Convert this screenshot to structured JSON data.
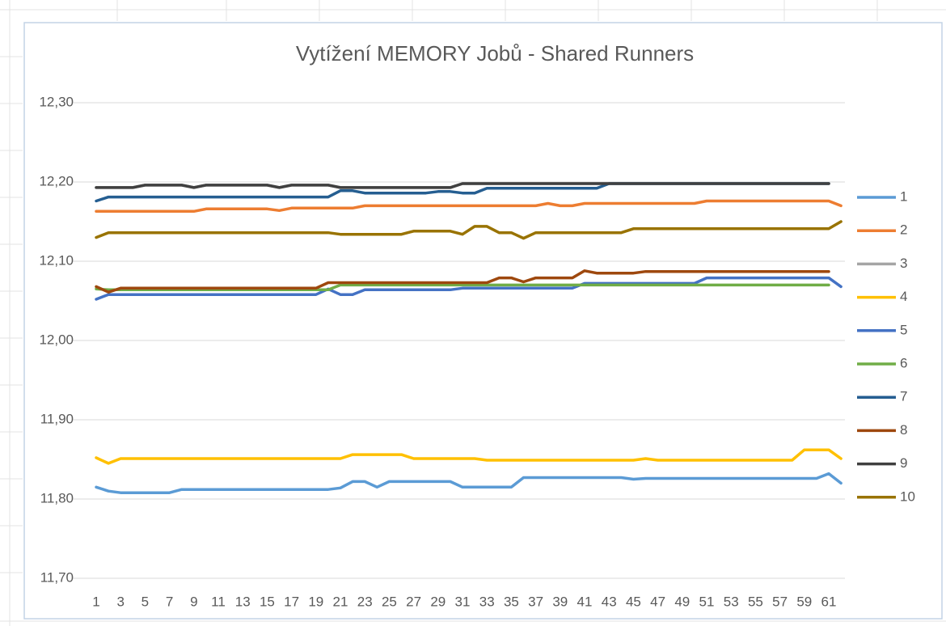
{
  "chart_data": {
    "type": "line",
    "title": "Vytížení MEMORY Jobů - Shared Runners",
    "categories": [
      "1",
      null,
      "3",
      null,
      "5",
      null,
      "7",
      null,
      "9",
      null,
      "11",
      null,
      "13",
      null,
      "15",
      null,
      "17",
      null,
      "19",
      null,
      "21",
      null,
      "23",
      null,
      "25",
      null,
      "27",
      null,
      "29",
      null,
      "31",
      null,
      "33",
      null,
      "35",
      null,
      "37",
      null,
      "39",
      null,
      "41",
      null,
      "43",
      null,
      "45",
      null,
      "47",
      null,
      "49",
      null,
      "51",
      null,
      "53",
      null,
      "55",
      null,
      "57",
      null,
      "59",
      null,
      "61",
      null
    ],
    "ylim": [
      11.7,
      12.3
    ],
    "yticks": [
      {
        "value": 11.7,
        "label": "11,70"
      },
      {
        "value": 11.8,
        "label": "11,80"
      },
      {
        "value": 11.9,
        "label": "11,90"
      },
      {
        "value": 12.0,
        "label": "12,00"
      },
      {
        "value": 12.1,
        "label": "12,10"
      },
      {
        "value": 12.2,
        "label": "12,20"
      },
      {
        "value": 12.3,
        "label": "12,30"
      }
    ],
    "grid": true,
    "legend": "right",
    "series": [
      {
        "name": "1",
        "color": "#5b9bd5",
        "values": [
          11.815,
          11.81,
          11.808,
          11.808,
          11.808,
          11.808,
          11.808,
          11.812,
          11.812,
          11.812,
          11.812,
          11.812,
          11.812,
          11.812,
          11.812,
          11.812,
          11.812,
          11.812,
          11.812,
          11.812,
          11.814,
          11.822,
          11.822,
          11.815,
          11.822,
          11.822,
          11.822,
          11.822,
          11.822,
          11.822,
          11.815,
          11.815,
          11.815,
          11.815,
          11.815,
          11.827,
          11.827,
          11.827,
          11.827,
          11.827,
          11.827,
          11.827,
          11.827,
          11.827,
          11.825,
          11.826,
          11.826,
          11.826,
          11.826,
          11.826,
          11.826,
          11.826,
          11.826,
          11.826,
          11.826,
          11.826,
          11.826,
          11.826,
          11.826,
          11.826,
          11.832,
          11.82
        ]
      },
      {
        "name": "2",
        "color": "#ed7d31",
        "values": [
          12.163,
          12.163,
          12.163,
          12.163,
          12.163,
          12.163,
          12.163,
          12.163,
          12.163,
          12.166,
          12.166,
          12.166,
          12.166,
          12.166,
          12.166,
          12.164,
          12.167,
          12.167,
          12.167,
          12.167,
          12.167,
          12.167,
          12.17,
          12.17,
          12.17,
          12.17,
          12.17,
          12.17,
          12.17,
          12.17,
          12.17,
          12.17,
          12.17,
          12.17,
          12.17,
          12.17,
          12.17,
          12.173,
          12.17,
          12.17,
          12.173,
          12.173,
          12.173,
          12.173,
          12.173,
          12.173,
          12.173,
          12.173,
          12.173,
          12.173,
          12.176,
          12.176,
          12.176,
          12.176,
          12.176,
          12.176,
          12.176,
          12.176,
          12.176,
          12.176,
          12.176,
          12.17
        ]
      },
      {
        "name": "3",
        "color": "#a5a5a5",
        "values": [
          12.193,
          12.193,
          12.193,
          12.193,
          12.196,
          12.196,
          12.196,
          12.196,
          12.193,
          12.196,
          12.196,
          12.196,
          12.196,
          12.196,
          12.196,
          12.193,
          12.196,
          12.196,
          12.196,
          12.196,
          12.193,
          12.193,
          12.193,
          12.193,
          12.193,
          12.193,
          12.193,
          12.193,
          12.193,
          12.193,
          12.198,
          12.198,
          12.198,
          12.198,
          12.198,
          12.198,
          12.198,
          12.198,
          12.198,
          12.198,
          12.198,
          12.198,
          12.198,
          12.198,
          12.198,
          12.198,
          12.198,
          12.198,
          12.198,
          12.198,
          12.198,
          12.198,
          12.198,
          12.198,
          12.198,
          12.198,
          12.198,
          12.198,
          12.198,
          12.198,
          12.198,
          null
        ]
      },
      {
        "name": "4",
        "color": "#ffc000",
        "values": [
          11.852,
          11.845,
          11.851,
          11.851,
          11.851,
          11.851,
          11.851,
          11.851,
          11.851,
          11.851,
          11.851,
          11.851,
          11.851,
          11.851,
          11.851,
          11.851,
          11.851,
          11.851,
          11.851,
          11.851,
          11.851,
          11.856,
          11.856,
          11.856,
          11.856,
          11.856,
          11.851,
          11.851,
          11.851,
          11.851,
          11.851,
          11.851,
          11.849,
          11.849,
          11.849,
          11.849,
          11.849,
          11.849,
          11.849,
          11.849,
          11.849,
          11.849,
          11.849,
          11.849,
          11.849,
          11.851,
          11.849,
          11.849,
          11.849,
          11.849,
          11.849,
          11.849,
          11.849,
          11.849,
          11.849,
          11.849,
          11.849,
          11.849,
          11.862,
          11.862,
          11.862,
          11.851
        ]
      },
      {
        "name": "5",
        "color": "#4472c4",
        "values": [
          12.052,
          12.058,
          12.058,
          12.058,
          12.058,
          12.058,
          12.058,
          12.058,
          12.058,
          12.058,
          12.058,
          12.058,
          12.058,
          12.058,
          12.058,
          12.058,
          12.058,
          12.058,
          12.058,
          12.065,
          12.058,
          12.058,
          12.064,
          12.064,
          12.064,
          12.064,
          12.064,
          12.064,
          12.064,
          12.064,
          12.066,
          12.066,
          12.066,
          12.066,
          12.066,
          12.066,
          12.066,
          12.066,
          12.066,
          12.066,
          12.072,
          12.072,
          12.072,
          12.072,
          12.072,
          12.072,
          12.072,
          12.072,
          12.072,
          12.072,
          12.079,
          12.079,
          12.079,
          12.079,
          12.079,
          12.079,
          12.079,
          12.079,
          12.079,
          12.079,
          12.079,
          12.068
        ]
      },
      {
        "name": "6",
        "color": "#70ad47",
        "values": [
          12.065,
          12.064,
          12.064,
          12.064,
          12.064,
          12.064,
          12.064,
          12.064,
          12.064,
          12.064,
          12.064,
          12.064,
          12.064,
          12.064,
          12.064,
          12.064,
          12.064,
          12.064,
          12.064,
          12.064,
          12.07,
          12.07,
          12.07,
          12.07,
          12.07,
          12.07,
          12.07,
          12.07,
          12.07,
          12.07,
          12.07,
          12.07,
          12.07,
          12.07,
          12.07,
          12.07,
          12.07,
          12.07,
          12.07,
          12.07,
          12.07,
          12.07,
          12.07,
          12.07,
          12.07,
          12.07,
          12.07,
          12.07,
          12.07,
          12.07,
          12.07,
          12.07,
          12.07,
          12.07,
          12.07,
          12.07,
          12.07,
          12.07,
          12.07,
          12.07,
          12.07,
          null
        ]
      },
      {
        "name": "7",
        "color": "#255e91",
        "values": [
          12.176,
          12.181,
          12.181,
          12.181,
          12.181,
          12.181,
          12.181,
          12.181,
          12.181,
          12.181,
          12.181,
          12.181,
          12.181,
          12.181,
          12.181,
          12.181,
          12.181,
          12.181,
          12.181,
          12.181,
          12.189,
          12.189,
          12.186,
          12.186,
          12.186,
          12.186,
          12.186,
          12.186,
          12.188,
          12.188,
          12.186,
          12.186,
          12.192,
          12.192,
          12.192,
          12.192,
          12.192,
          12.192,
          12.192,
          12.192,
          12.192,
          12.192,
          12.198,
          12.198,
          12.198,
          12.198,
          12.198,
          12.198,
          12.198,
          12.198,
          12.198,
          12.198,
          12.198,
          12.198,
          12.198,
          12.198,
          12.198,
          12.198,
          12.198,
          12.198,
          12.198,
          null
        ]
      },
      {
        "name": "8",
        "color": "#9e480e",
        "values": [
          12.068,
          12.061,
          12.066,
          12.066,
          12.066,
          12.066,
          12.066,
          12.066,
          12.066,
          12.066,
          12.066,
          12.066,
          12.066,
          12.066,
          12.066,
          12.066,
          12.066,
          12.066,
          12.066,
          12.073,
          12.073,
          12.073,
          12.073,
          12.073,
          12.073,
          12.073,
          12.073,
          12.073,
          12.073,
          12.073,
          12.073,
          12.073,
          12.073,
          12.079,
          12.079,
          12.074,
          12.079,
          12.079,
          12.079,
          12.079,
          12.088,
          12.085,
          12.085,
          12.085,
          12.085,
          12.087,
          12.087,
          12.087,
          12.087,
          12.087,
          12.087,
          12.087,
          12.087,
          12.087,
          12.087,
          12.087,
          12.087,
          12.087,
          12.087,
          12.087,
          12.087,
          null
        ]
      },
      {
        "name": "9",
        "color": "#404040",
        "values": [
          12.193,
          12.193,
          12.193,
          12.193,
          12.196,
          12.196,
          12.196,
          12.196,
          12.193,
          12.196,
          12.196,
          12.196,
          12.196,
          12.196,
          12.196,
          12.193,
          12.196,
          12.196,
          12.196,
          12.196,
          12.193,
          12.193,
          12.193,
          12.193,
          12.193,
          12.193,
          12.193,
          12.193,
          12.193,
          12.193,
          12.198,
          12.198,
          12.198,
          12.198,
          12.198,
          12.198,
          12.198,
          12.198,
          12.198,
          12.198,
          12.198,
          12.198,
          12.198,
          12.198,
          12.198,
          12.198,
          12.198,
          12.198,
          12.198,
          12.198,
          12.198,
          12.198,
          12.198,
          12.198,
          12.198,
          12.198,
          12.198,
          12.198,
          12.198,
          12.198,
          12.198,
          null
        ]
      },
      {
        "name": "10",
        "color": "#997300",
        "values": [
          12.13,
          12.136,
          12.136,
          12.136,
          12.136,
          12.136,
          12.136,
          12.136,
          12.136,
          12.136,
          12.136,
          12.136,
          12.136,
          12.136,
          12.136,
          12.136,
          12.136,
          12.136,
          12.136,
          12.136,
          12.134,
          12.134,
          12.134,
          12.134,
          12.134,
          12.134,
          12.138,
          12.138,
          12.138,
          12.138,
          12.134,
          12.144,
          12.144,
          12.136,
          12.136,
          12.129,
          12.136,
          12.136,
          12.136,
          12.136,
          12.136,
          12.136,
          12.136,
          12.136,
          12.141,
          12.141,
          12.141,
          12.141,
          12.141,
          12.141,
          12.141,
          12.141,
          12.141,
          12.141,
          12.141,
          12.141,
          12.141,
          12.141,
          12.141,
          12.141,
          12.141,
          12.15
        ]
      }
    ]
  }
}
